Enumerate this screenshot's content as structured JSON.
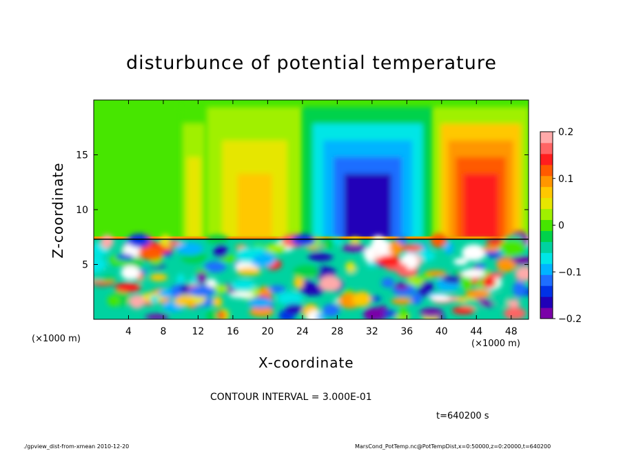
{
  "chart_data": {
    "type": "heatmap",
    "title": "disturbunce of potential temperature",
    "xlabel": "X-coordinate",
    "ylabel": "Z-coordinate",
    "x_unit_label": "(×1000 m)",
    "xlim": [
      0,
      50
    ],
    "ylim": [
      0,
      20
    ],
    "x_ticks": [
      4,
      8,
      12,
      16,
      20,
      24,
      28,
      32,
      36,
      40,
      44,
      48
    ],
    "y_ticks": [
      5,
      10,
      15
    ],
    "colorbar": {
      "ticks": [
        0.2,
        0.1,
        0,
        -0.1,
        -0.2
      ],
      "tick_labels": [
        "0.2",
        "0.1",
        "0",
        "−0.1",
        "−0.2"
      ],
      "range": [
        -0.2,
        0.2
      ],
      "colors": [
        "#7a00a8",
        "#2000b8",
        "#0032e6",
        "#1e6eff",
        "#00b4ff",
        "#00e6e6",
        "#00d2a0",
        "#00d24b",
        "#46e600",
        "#a0f000",
        "#e6e600",
        "#ffc800",
        "#ff9600",
        "#ff5a00",
        "#ff1e1e",
        "#ff6464",
        "#ffaaaa"
      ]
    },
    "contour_interval_text": "CONTOUR INTERVAL = 3.000E-01",
    "time_text": "t=640200 s",
    "upper_layer_regions": [
      {
        "x": [
          0,
          10
        ],
        "value": 0.0
      },
      {
        "x": [
          10,
          13
        ],
        "value": 0.05
      },
      {
        "x": [
          13,
          24
        ],
        "value": 0.07
      },
      {
        "x": [
          24,
          39
        ],
        "value": -0.16
      },
      {
        "x": [
          39,
          50
        ],
        "value": 0.15
      }
    ],
    "layer_boundary_z": 7.3
  },
  "texts": {
    "title": "disturbunce of potential temperature",
    "xlabel": "X-coordinate",
    "ylabel": "Z-coordinate",
    "x_unit_left": "(×1000 m)",
    "x_unit_right": "(×1000 m)",
    "contour": "CONTOUR INTERVAL = 3.000E-01",
    "time": "t=640200 s",
    "footer_left": "./gpview_dist-from-xmean   2010-12-20",
    "footer_right": "MarsCond_PotTemp.nc@PotTempDist,x=0:50000,z=0:20000,t=640200"
  }
}
